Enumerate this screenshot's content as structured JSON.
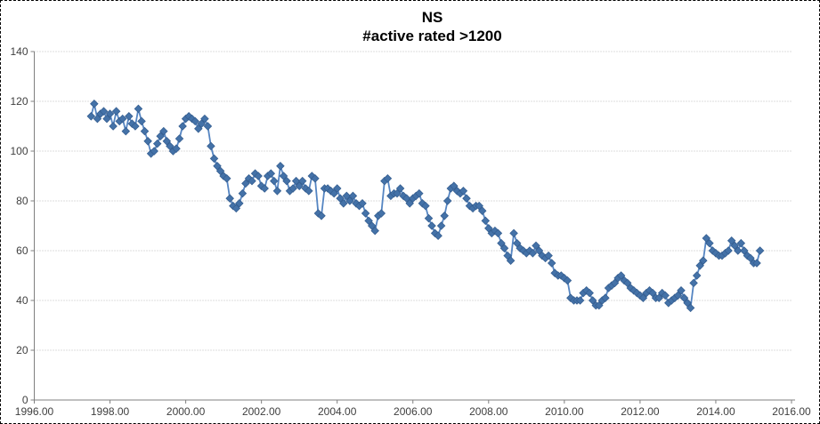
{
  "chart_data": {
    "type": "line",
    "title": "NS",
    "subtitle": "#active rated >1200",
    "xlabel": "",
    "ylabel": "",
    "xlim": [
      1996,
      2016
    ],
    "ylim": [
      0,
      140
    ],
    "x_ticks": [
      "1996.00",
      "1998.00",
      "2000.00",
      "2002.00",
      "2004.00",
      "2006.00",
      "2008.00",
      "2010.00",
      "2012.00",
      "2014.00",
      "2016.00"
    ],
    "y_ticks": [
      0,
      20,
      40,
      60,
      80,
      100,
      120,
      140
    ],
    "grid": "horizontal-dotted-gray",
    "legend": "none",
    "marker": "diamond",
    "series_name": "#active rated >1200",
    "colors": {
      "marker_fill": "#4472a8",
      "marker_edge": "#365f91",
      "line": "#5585c2",
      "gridline": "#bdbdbd",
      "axis": "#808080",
      "tick_label": "#3f3f3f",
      "title": "#000000"
    },
    "x_start": 1997.5,
    "x_step": 0.0833333,
    "values": [
      114,
      119,
      113,
      115,
      116,
      113,
      115,
      110,
      116,
      112,
      113,
      108,
      114,
      111,
      110,
      117,
      112,
      108,
      104,
      99,
      100,
      103,
      106,
      108,
      104,
      102,
      100,
      101,
      105,
      110,
      113,
      114,
      113,
      112,
      109,
      111,
      113,
      110,
      102,
      97,
      94,
      92,
      90,
      89,
      81,
      78,
      77,
      79,
      83,
      87,
      89,
      88,
      91,
      90,
      86,
      85,
      90,
      91,
      88,
      84,
      94,
      90,
      88,
      84,
      85,
      88,
      86,
      88,
      85,
      84,
      90,
      89,
      75,
      74,
      85,
      85,
      84,
      83,
      85,
      81,
      79,
      82,
      80,
      82,
      79,
      78,
      79,
      75,
      72,
      70,
      68,
      74,
      75,
      88,
      89,
      82,
      83,
      83,
      85,
      82,
      81,
      79,
      81,
      82,
      83,
      79,
      78,
      73,
      70,
      67,
      66,
      70,
      74,
      80,
      85,
      86,
      84,
      83,
      84,
      81,
      78,
      77,
      78,
      78,
      76,
      72,
      69,
      67,
      68,
      67,
      63,
      61,
      58,
      56,
      67,
      63,
      61,
      60,
      59,
      60,
      59,
      62,
      60,
      58,
      57,
      58,
      55,
      51,
      50,
      50,
      49,
      48,
      41,
      40,
      40,
      40,
      43,
      44,
      43,
      40,
      38,
      38,
      40,
      41,
      45,
      46,
      47,
      49,
      50,
      48,
      47,
      45,
      44,
      43,
      42,
      41,
      43,
      44,
      43,
      41,
      41,
      43,
      42,
      39,
      40,
      41,
      42,
      44,
      41,
      39,
      37,
      47,
      50,
      54,
      56,
      65,
      63,
      60,
      59,
      58,
      58,
      59,
      60,
      64,
      62,
      60,
      63,
      60,
      58,
      57,
      55,
      55,
      60
    ]
  }
}
